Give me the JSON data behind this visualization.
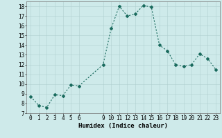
{
  "x": [
    0,
    1,
    2,
    3,
    4,
    5,
    6,
    9,
    10,
    11,
    12,
    13,
    14,
    15,
    16,
    17,
    18,
    19,
    20,
    21,
    22,
    23
  ],
  "y": [
    8.7,
    7.8,
    7.6,
    8.9,
    8.8,
    9.9,
    9.8,
    12.0,
    15.7,
    18.0,
    17.0,
    17.2,
    18.1,
    17.9,
    14.0,
    13.4,
    12.0,
    11.8,
    12.0,
    13.1,
    12.6,
    11.5
  ],
  "xlabel": "Humidex (Indice chaleur)",
  "xlim": [
    -0.5,
    23.5
  ],
  "ylim": [
    7,
    18.5
  ],
  "yticks": [
    7,
    8,
    9,
    10,
    11,
    12,
    13,
    14,
    15,
    16,
    17,
    18
  ],
  "xticks": [
    0,
    1,
    2,
    3,
    4,
    5,
    6,
    9,
    10,
    11,
    12,
    13,
    14,
    15,
    16,
    17,
    18,
    19,
    20,
    21,
    22,
    23
  ],
  "line_color": "#1a6b5e",
  "marker_color": "#1a6b5e",
  "bg_color": "#ceeaea",
  "grid_color": "#b0d0d0",
  "label_fontsize": 6.5,
  "tick_fontsize": 5.5
}
